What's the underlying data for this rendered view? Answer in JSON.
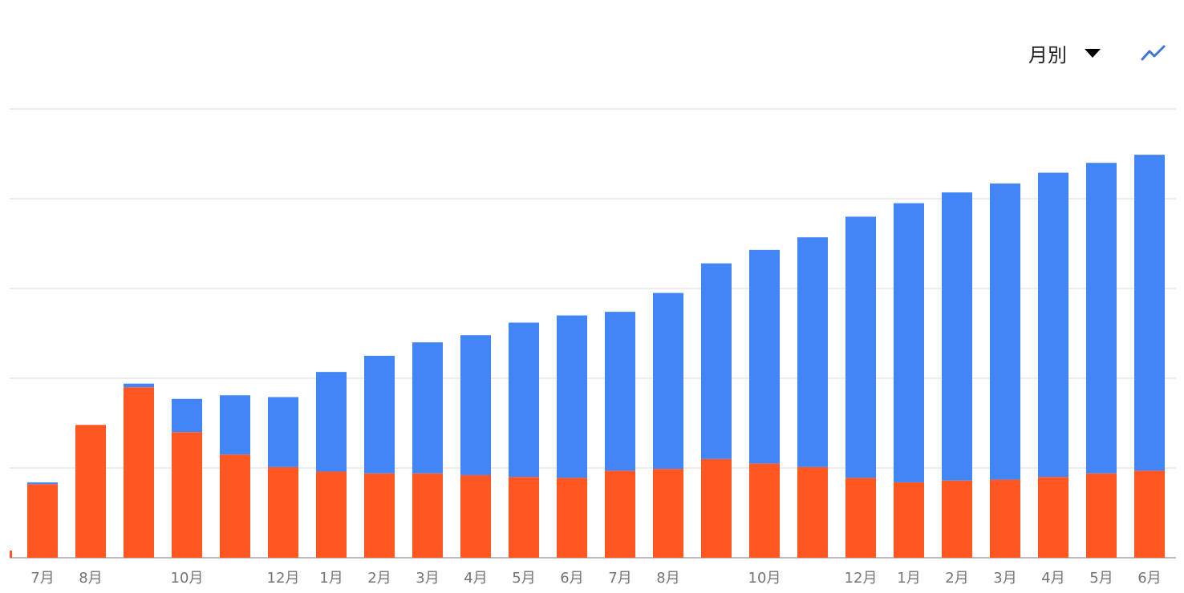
{
  "toolbar": {
    "period_label": "月別",
    "dropdown_icon": "caret-down-icon",
    "chart_toggle_icon": "line-chart-icon"
  },
  "colors": {
    "series_bottom": "#ff5722",
    "series_top": "#4285f4",
    "grid": "#e6e6e6",
    "axis": "#bdbdbd",
    "icon_accent": "#3c78d8"
  },
  "chart_data": {
    "type": "bar",
    "stacked": true,
    "grid": true,
    "legend": "none",
    "ylim": [
      0,
      500
    ],
    "categories": [
      "7月",
      "8月",
      "",
      "10月",
      "",
      "12月",
      "1月",
      "2月",
      "3月",
      "4月",
      "5月",
      "6月",
      "7月",
      "8月",
      "",
      "10月",
      "",
      "12月",
      "1月",
      "2月",
      "3月",
      "4月",
      "5月",
      "6月"
    ],
    "leading_stub": {
      "bottom": 8,
      "top": 0
    },
    "series": [
      {
        "values": [
          82,
          148,
          190,
          140,
          115,
          101,
          96,
          94,
          94,
          92,
          90,
          89,
          97,
          99,
          110,
          105,
          101,
          89,
          84,
          86,
          87,
          90,
          94,
          97
        ]
      },
      {
        "values": [
          2,
          0,
          4,
          37,
          66,
          78,
          111,
          131,
          146,
          156,
          172,
          181,
          177,
          196,
          218,
          238,
          256,
          291,
          311,
          321,
          330,
          339,
          346,
          352
        ]
      }
    ]
  }
}
